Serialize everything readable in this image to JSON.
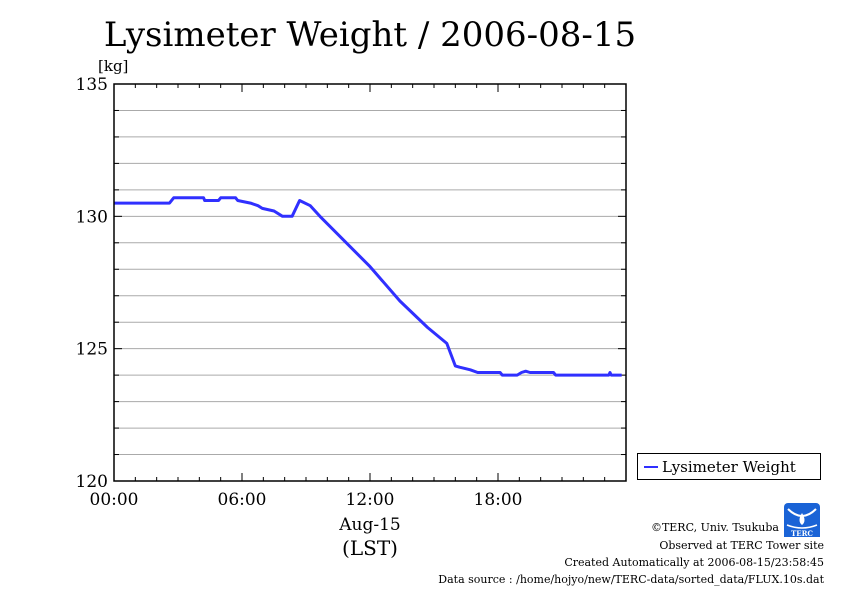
{
  "chart_data": {
    "type": "line",
    "title": "Lysimeter Weight / 2006-08-15",
    "ylabel": "[kg]",
    "xlabel": "(LST)",
    "date_label": "Aug-15",
    "xlim": [
      0,
      24
    ],
    "ylim": [
      120,
      135
    ],
    "x_ticks": [
      0,
      6,
      12,
      18
    ],
    "x_tick_labels": [
      "00:00",
      "06:00",
      "12:00",
      "18:00"
    ],
    "y_ticks": [
      120,
      125,
      130,
      135
    ],
    "y_tick_labels": [
      "120",
      "125",
      "130",
      "135"
    ],
    "grid": true,
    "legend": {
      "position": "bottom-right-outside",
      "entries": [
        "Lysimeter Weight"
      ]
    },
    "series": [
      {
        "name": "Lysimeter Weight",
        "color": "#3030ff",
        "x": [
          0,
          2.6,
          2.8,
          4.2,
          4.25,
          4.9,
          5.0,
          5.7,
          5.8,
          6.4,
          6.75,
          6.95,
          7.5,
          7.9,
          8.35,
          8.7,
          9.2,
          9.65,
          12.0,
          13.4,
          14.7,
          15.6,
          16.0,
          16.2,
          16.7,
          17.05,
          18.1,
          18.2,
          18.9,
          19.1,
          19.3,
          19.5,
          20.6,
          20.7,
          23.2,
          23.25,
          23.3,
          23.8
        ],
        "y": [
          130.5,
          130.5,
          130.7,
          130.7,
          130.6,
          130.6,
          130.7,
          130.7,
          130.6,
          130.5,
          130.4,
          130.3,
          130.2,
          130.0,
          130.0,
          130.6,
          130.4,
          130.0,
          128.1,
          126.8,
          125.8,
          125.2,
          124.35,
          124.3,
          124.2,
          124.1,
          124.1,
          124.0,
          124.0,
          124.1,
          124.15,
          124.1,
          124.1,
          124.0,
          124.0,
          124.1,
          124.0,
          124.0
        ]
      }
    ]
  },
  "credits": {
    "copyright": "©TERC, Univ. Tsukuba",
    "observed": "Observed at TERC Tower site",
    "created": "Created Automatically at 2006-08-15/23:58:45",
    "source": "Data source : /home/hojyo/new/TERC-data/sorted_data/FLUX.10s.dat",
    "logo_text": "TERC"
  }
}
